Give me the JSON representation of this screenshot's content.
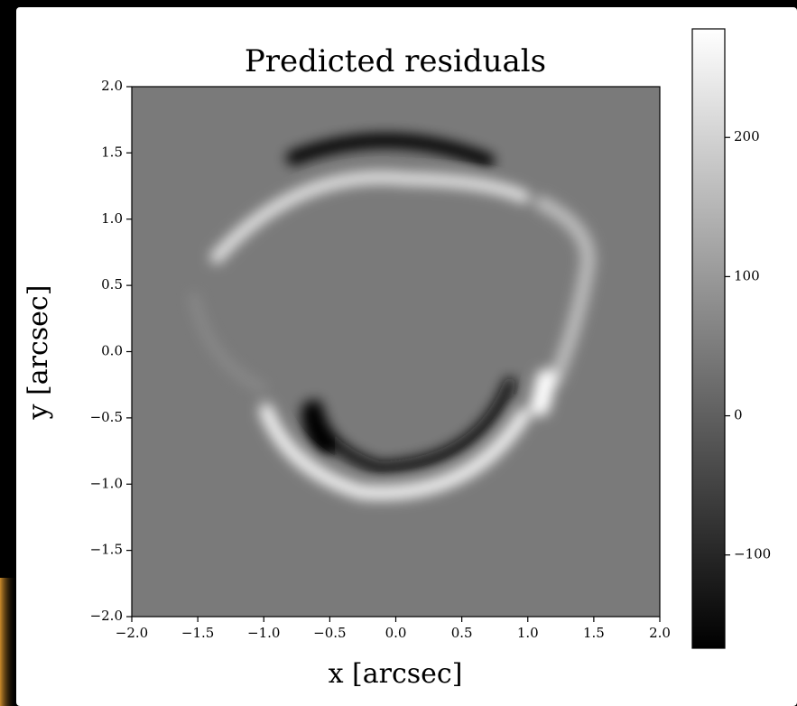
{
  "chart_data": {
    "type": "heatmap",
    "title": "Predicted residuals",
    "xlabel": "x [arcsec]",
    "ylabel": "y [arcsec]",
    "xlim": [
      -2.0,
      2.0
    ],
    "ylim": [
      -2.0,
      2.0
    ],
    "xticks": [
      {
        "value": -2.0,
        "label": "−2.0"
      },
      {
        "value": -1.5,
        "label": "−1.5"
      },
      {
        "value": -1.0,
        "label": "−1.0"
      },
      {
        "value": -0.5,
        "label": "−0.5"
      },
      {
        "value": 0.0,
        "label": "0.0"
      },
      {
        "value": 0.5,
        "label": "0.5"
      },
      {
        "value": 1.0,
        "label": "1.0"
      },
      {
        "value": 1.5,
        "label": "1.5"
      },
      {
        "value": 2.0,
        "label": "2.0"
      }
    ],
    "yticks": [
      {
        "value": -2.0,
        "label": "−2.0"
      },
      {
        "value": -1.5,
        "label": "−1.5"
      },
      {
        "value": -1.0,
        "label": "−1.0"
      },
      {
        "value": -0.5,
        "label": "−0.5"
      },
      {
        "value": 0.0,
        "label": "0.0"
      },
      {
        "value": 0.5,
        "label": "0.5"
      },
      {
        "value": 1.0,
        "label": "1.0"
      },
      {
        "value": 1.5,
        "label": "1.5"
      },
      {
        "value": 2.0,
        "label": "2.0"
      }
    ],
    "colormap": "gray",
    "clim": [
      -167,
      278
    ],
    "cticks": [
      {
        "value": -100,
        "label": "−100"
      },
      0,
      100,
      200
    ]
  }
}
